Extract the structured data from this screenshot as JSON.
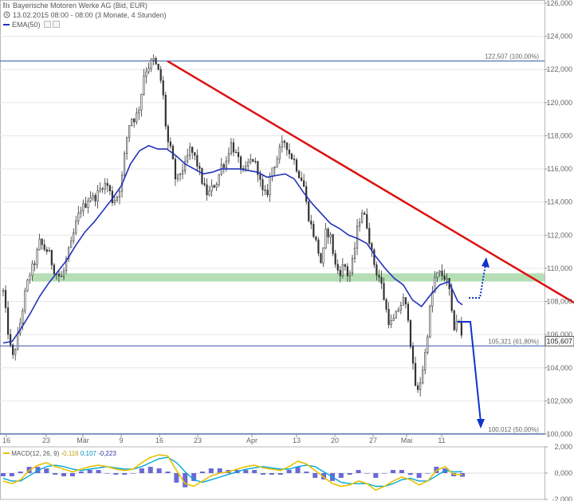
{
  "header": {
    "title": "Bayerische Motoren Werke AG (Bid, EUR)",
    "subtitle": "13.02.2015 08:00 - 08:00 (3 Monate, 4 Stunden)",
    "ema_label": "EMA(50)"
  },
  "macd_legend": {
    "label": "MACD(12, 26, 9)",
    "v1": "-0,116",
    "v2": "0,107",
    "v3": "-0,223"
  },
  "colors": {
    "candle": "#333333",
    "ema": "#2233bb",
    "trendline": "#dd1111",
    "support_band": "#a8d8a8",
    "fib_line": "#3355aa",
    "arrow": "#1133cc",
    "macd_yellow": "#e8c000",
    "macd_cyan": "#00a6d6",
    "macd_hist": "#4444cc"
  },
  "chart_data": [
    {
      "type": "candlestick",
      "title": "Bayerische Motoren Werke AG (Bid, EUR)",
      "ylim": [
        100000,
        126000
      ],
      "y_ticks": [
        "126,000",
        "124,000",
        "122,000",
        "120,000",
        "118,000",
        "116,000",
        "114,000",
        "112,000",
        "110,000",
        "108,000",
        "106,000",
        "104,000",
        "102,000",
        "100,000"
      ],
      "x_ticks": [
        "16",
        "23",
        "Mär",
        "9",
        "16",
        "23",
        "Apr",
        "13",
        "20",
        "27",
        "Mai",
        "11"
      ],
      "last_price_label": "105,607",
      "fib_levels": [
        {
          "label": "122,507 (100,00%)",
          "value": 122507
        },
        {
          "label": "105,321 (61,80%)",
          "value": 105321
        },
        {
          "label": "100,012 (50,00%)",
          "value": 100012
        }
      ],
      "support_zone": [
        109300,
        109700
      ],
      "trendline": [
        {
          "x": "2015-03-16",
          "y": 122507
        },
        {
          "x": "2015-05-22",
          "y": 107300
        }
      ],
      "ema_label": "EMA(50)",
      "price_path": [
        [
          0,
          108.6
        ],
        [
          3,
          106.3
        ],
        [
          6,
          104.5
        ],
        [
          9,
          105.6
        ],
        [
          12,
          107.1
        ],
        [
          15,
          108.8
        ],
        [
          18,
          109.8
        ],
        [
          21,
          110.4
        ],
        [
          24,
          111.6
        ],
        [
          27,
          111.2
        ],
        [
          30,
          111.0
        ],
        [
          33,
          110.0
        ],
        [
          36,
          109.6
        ],
        [
          39,
          109.4
        ],
        [
          42,
          110.7
        ],
        [
          45,
          111.5
        ],
        [
          48,
          112.7
        ],
        [
          51,
          113.6
        ],
        [
          54,
          113.8
        ],
        [
          57,
          114.4
        ],
        [
          60,
          114.2
        ],
        [
          63,
          114.6
        ],
        [
          66,
          115.1
        ],
        [
          69,
          115.0
        ],
        [
          72,
          114.1
        ],
        [
          75,
          114.3
        ],
        [
          78,
          115.2
        ],
        [
          81,
          117.6
        ],
        [
          84,
          119.1
        ],
        [
          87,
          119.0
        ],
        [
          90,
          119.8
        ],
        [
          93,
          121.8
        ],
        [
          96,
          122.2
        ],
        [
          99,
          122.6
        ],
        [
          102,
          122.0
        ],
        [
          105,
          121.0
        ],
        [
          108,
          117.8
        ],
        [
          111,
          117.0
        ],
        [
          114,
          115.2
        ],
        [
          117,
          115.8
        ],
        [
          120,
          116.2
        ],
        [
          123,
          117.2
        ],
        [
          126,
          116.8
        ],
        [
          129,
          116.0
        ],
        [
          132,
          115.0
        ],
        [
          135,
          114.4
        ],
        [
          138,
          114.9
        ],
        [
          141,
          115.2
        ],
        [
          144,
          116.2
        ],
        [
          147,
          116.4
        ],
        [
          150,
          117.6
        ],
        [
          153,
          117.0
        ],
        [
          156,
          116.3
        ],
        [
          159,
          115.7
        ],
        [
          162,
          116.4
        ],
        [
          165,
          116.6
        ],
        [
          168,
          115.9
        ],
        [
          171,
          114.6
        ],
        [
          174,
          114.4
        ],
        [
          177,
          116.0
        ],
        [
          180,
          116.4
        ],
        [
          183,
          117.3
        ],
        [
          186,
          117.7
        ],
        [
          189,
          116.9
        ],
        [
          192,
          116.5
        ],
        [
          195,
          115.7
        ],
        [
          198,
          115.2
        ],
        [
          201,
          113.3
        ],
        [
          204,
          112.3
        ],
        [
          207,
          111.4
        ],
        [
          210,
          110.2
        ],
        [
          213,
          112.3
        ],
        [
          216,
          111.9
        ],
        [
          219,
          110.2
        ],
        [
          222,
          109.7
        ],
        [
          225,
          110.3
        ],
        [
          228,
          109.4
        ],
        [
          231,
          110.6
        ],
        [
          234,
          112.6
        ],
        [
          237,
          113.5
        ],
        [
          240,
          112.6
        ],
        [
          243,
          111.0
        ],
        [
          246,
          109.8
        ],
        [
          249,
          109.3
        ],
        [
          252,
          107.8
        ],
        [
          255,
          106.6
        ],
        [
          258,
          106.9
        ],
        [
          261,
          107.6
        ],
        [
          264,
          108.1
        ],
        [
          267,
          107.3
        ],
        [
          270,
          104.3
        ],
        [
          273,
          102.3
        ],
        [
          276,
          103.5
        ],
        [
          279,
          105.2
        ],
        [
          282,
          107.9
        ],
        [
          285,
          109.5
        ],
        [
          288,
          109.7
        ],
        [
          291,
          109.5
        ],
        [
          294,
          109.0
        ],
        [
          297,
          106.3
        ],
        [
          300,
          107.1
        ],
        [
          303,
          105.6
        ]
      ],
      "ema_path": [
        [
          0,
          105.5
        ],
        [
          6,
          105.6
        ],
        [
          12,
          106.4
        ],
        [
          18,
          107.3
        ],
        [
          24,
          108.3
        ],
        [
          30,
          109.1
        ],
        [
          36,
          109.8
        ],
        [
          42,
          110.5
        ],
        [
          48,
          111.4
        ],
        [
          54,
          112.2
        ],
        [
          60,
          112.8
        ],
        [
          66,
          113.5
        ],
        [
          72,
          114.2
        ],
        [
          78,
          115.0
        ],
        [
          84,
          116.3
        ],
        [
          90,
          117.1
        ],
        [
          96,
          117.4
        ],
        [
          102,
          117.2
        ],
        [
          108,
          117.2
        ],
        [
          114,
          116.8
        ],
        [
          120,
          116.3
        ],
        [
          126,
          116.0
        ],
        [
          132,
          115.7
        ],
        [
          138,
          115.8
        ],
        [
          144,
          116.0
        ],
        [
          150,
          116.0
        ],
        [
          156,
          116.0
        ],
        [
          162,
          115.9
        ],
        [
          168,
          115.8
        ],
        [
          174,
          115.5
        ],
        [
          180,
          115.6
        ],
        [
          186,
          115.7
        ],
        [
          192,
          115.4
        ],
        [
          198,
          114.6
        ],
        [
          204,
          113.9
        ],
        [
          210,
          113.3
        ],
        [
          216,
          112.7
        ],
        [
          222,
          112.4
        ],
        [
          228,
          112.0
        ],
        [
          234,
          111.8
        ],
        [
          240,
          111.5
        ],
        [
          246,
          110.7
        ],
        [
          252,
          110.0
        ],
        [
          258,
          109.4
        ],
        [
          264,
          109.0
        ],
        [
          270,
          108.1
        ],
        [
          276,
          107.7
        ],
        [
          282,
          108.4
        ],
        [
          288,
          109.0
        ],
        [
          294,
          109.2
        ],
        [
          300,
          108.0
        ],
        [
          303,
          107.8
        ]
      ]
    },
    {
      "type": "line",
      "title": "MACD(12, 26, 9)",
      "ylim": [
        -2,
        2
      ],
      "y_ticks": [
        "2,000",
        "0,000",
        "-2,000"
      ],
      "series": [
        {
          "name": "MACD(12, 26, 9)",
          "values": [
            -0.6,
            -0.8,
            -0.5,
            0.2,
            0.6,
            0.8,
            0.5,
            0.3,
            0.1,
            0.3,
            0.5,
            0.6,
            0.5,
            0.3,
            0.2,
            0.3,
            0.8,
            1.2,
            1.4,
            1.3,
            0.2,
            -0.8,
            -1.0,
            -0.6,
            -0.2,
            0.0,
            0.1,
            0.3,
            0.5,
            0.6,
            0.4,
            0.3,
            0.2,
            0.5,
            0.9,
            0.7,
            0.2,
            -0.3,
            -0.8,
            -1.0,
            -0.9,
            -0.6,
            -0.8,
            -1.3,
            -1.0,
            -0.6,
            -0.3,
            -0.5,
            -0.9,
            -0.6,
            0.2,
            0.5,
            -0.1,
            -0.12
          ]
        },
        {
          "values": [
            -0.4,
            -0.6,
            -0.6,
            -0.2,
            0.2,
            0.5,
            0.6,
            0.5,
            0.3,
            0.2,
            0.3,
            0.4,
            0.5,
            0.4,
            0.3,
            0.3,
            0.5,
            0.8,
            1.1,
            1.2,
            0.8,
            0.1,
            -0.5,
            -0.7,
            -0.5,
            -0.3,
            -0.1,
            0.1,
            0.3,
            0.4,
            0.5,
            0.4,
            0.3,
            0.3,
            0.5,
            0.6,
            0.5,
            0.1,
            -0.3,
            -0.7,
            -0.8,
            -0.8,
            -0.8,
            -1.0,
            -1.0,
            -0.8,
            -0.5,
            -0.4,
            -0.6,
            -0.6,
            -0.2,
            0.2,
            0.1,
            0.11
          ]
        }
      ]
    }
  ]
}
